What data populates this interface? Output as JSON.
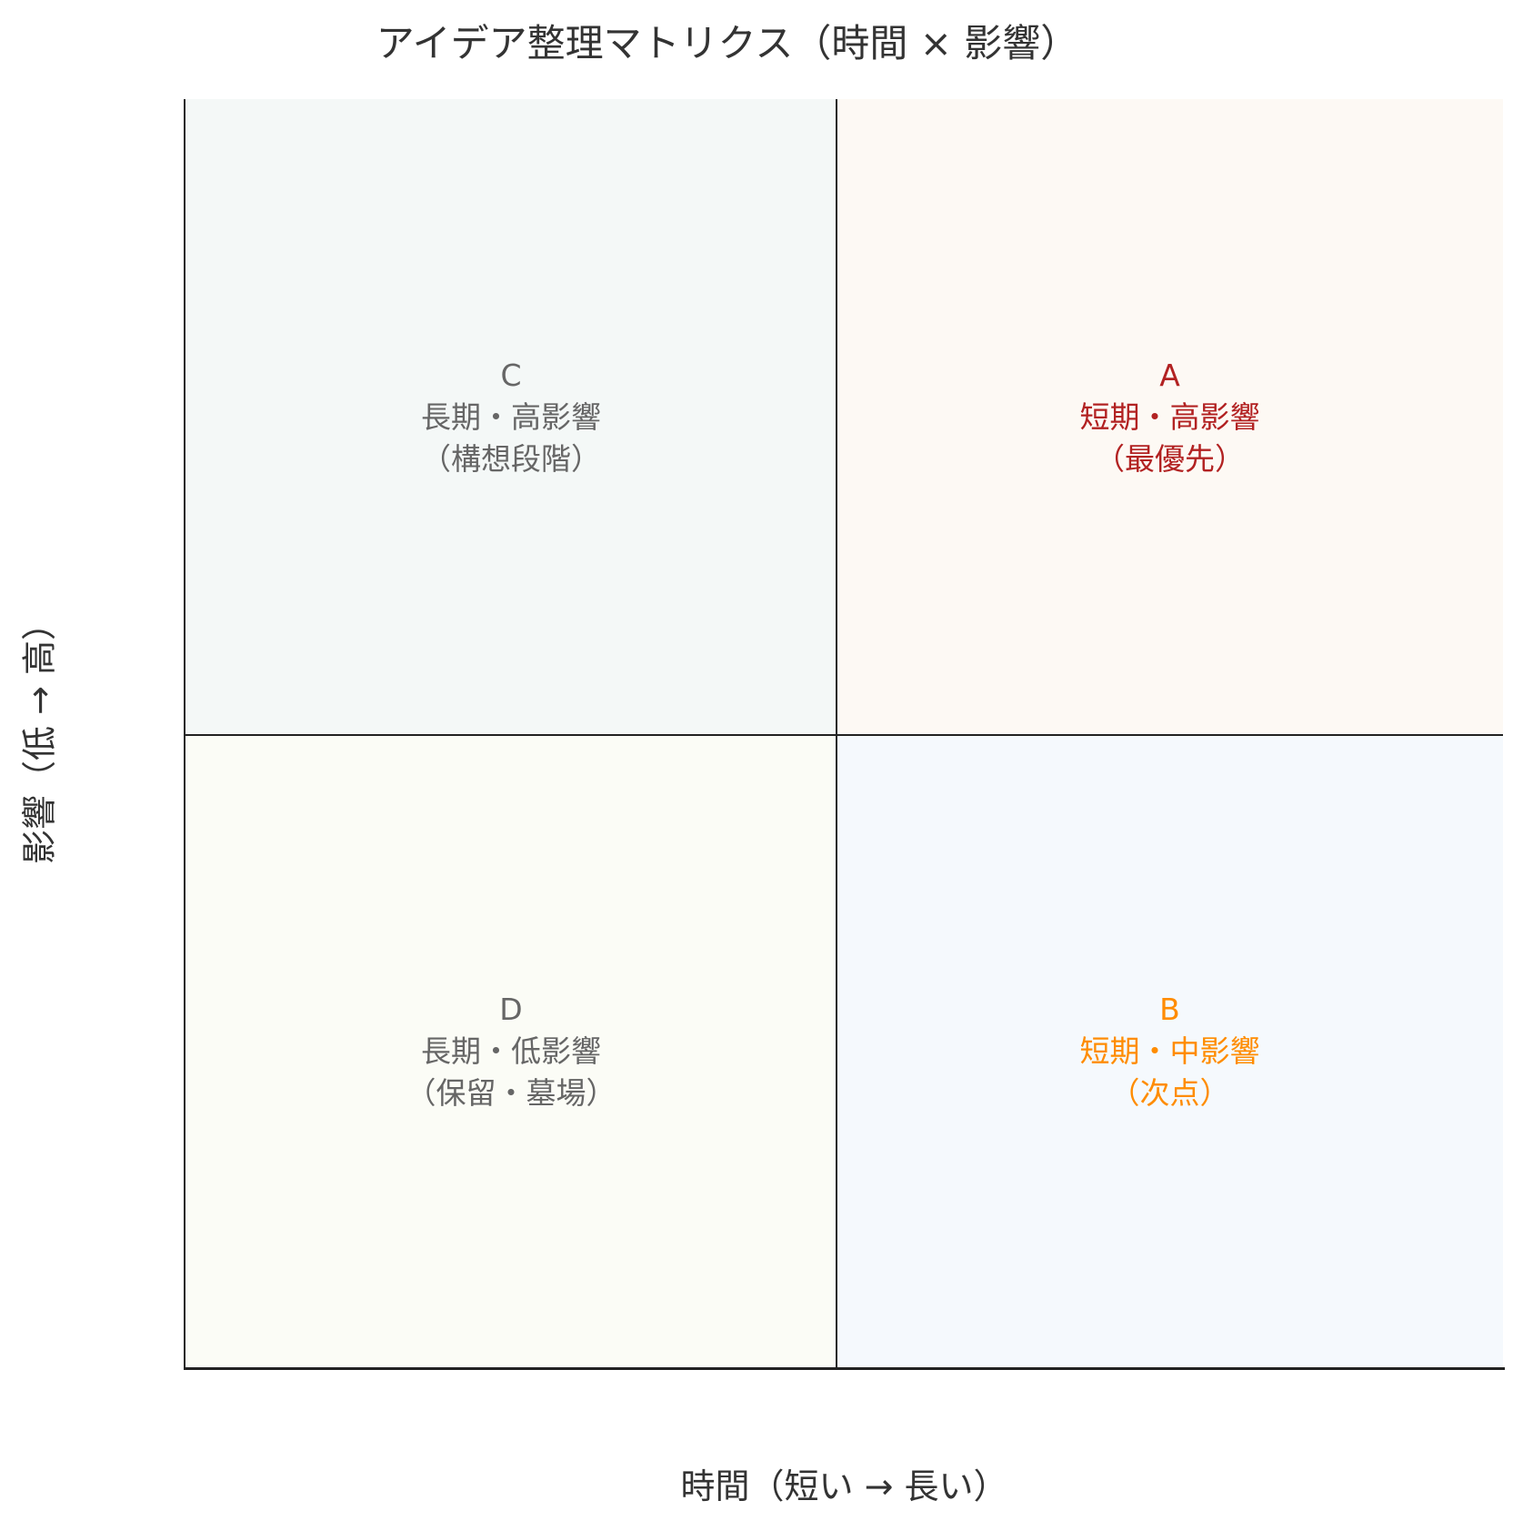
{
  "title": "アイデア整理マトリクス（時間 × 影響）",
  "xlabel": "時間（短い → 長い）",
  "ylabel": "影響（低 → 高）",
  "quadrants": {
    "A": {
      "letter": "A",
      "line1": "短期・高影響",
      "line2": "（最優先）",
      "text_color": "#b22222",
      "bg_color": "#fdf9f4"
    },
    "B": {
      "letter": "B",
      "line1": "短期・中影響",
      "line2": "（次点）",
      "text_color": "#ff8c00",
      "bg_color": "#f5f9fd"
    },
    "C": {
      "letter": "C",
      "line1": "長期・高影響",
      "line2": "（構想段階）",
      "text_color": "#666666",
      "bg_color": "#f4f8f7"
    },
    "D": {
      "letter": "D",
      "line1": "長期・低影響",
      "line2": "（保留・墓場）",
      "text_color": "#666666",
      "bg_color": "#fbfcf6"
    }
  }
}
